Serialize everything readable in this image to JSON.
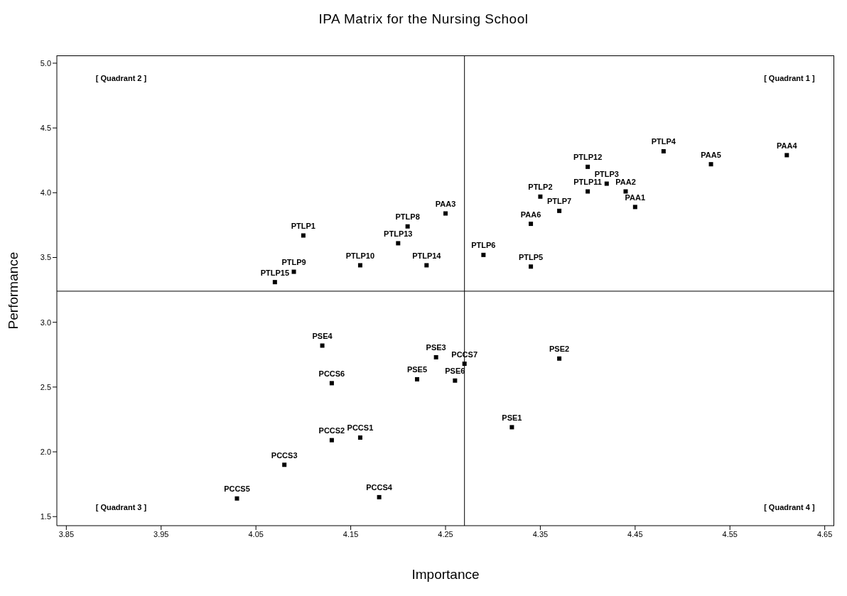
{
  "chart_data": {
    "type": "scatter",
    "title": "IPA Matrix for the Nursing School",
    "xlabel": "Importance",
    "ylabel": "Performance",
    "xlim": [
      3.84,
      4.66
    ],
    "ylim": [
      1.43,
      5.06
    ],
    "xticks": [
      3.85,
      3.95,
      4.05,
      4.15,
      4.25,
      4.35,
      4.45,
      4.55,
      4.65
    ],
    "yticks": [
      {
        "value": 1.5,
        "label": "1.5"
      },
      {
        "value": 2,
        "label": "2.0"
      },
      {
        "value": 2.5,
        "label": "2.5"
      },
      {
        "value": 3,
        "label": "3.0"
      },
      {
        "value": 3.5,
        "label": "3.5"
      },
      {
        "value": 4,
        "label": "4.0"
      },
      {
        "value": 4.5,
        "label": "4.5"
      },
      {
        "value": 5,
        "label": "5.0"
      }
    ],
    "grid": false,
    "legend": false,
    "marker": "square",
    "ref_lines": [
      {
        "axis": "x",
        "value": 4.27,
        "color": "#000000"
      },
      {
        "axis": "y",
        "value": 3.24,
        "color": "#000000"
      }
    ],
    "annotations": [
      "[ Quadrant 2 ]",
      "[ Quadrant 1 ]",
      "[ Quadrant 3 ]",
      "[ Quadrant 4 ]"
    ],
    "series": [
      {
        "color": "#000000",
        "x": [
          4.1,
          4.09,
          4.07,
          4.16,
          4.2,
          4.21,
          4.25,
          4.23,
          4.29,
          4.34,
          4.34,
          4.35,
          4.37,
          4.4,
          4.4,
          4.42,
          4.44,
          4.45,
          4.48,
          4.53,
          4.61,
          4.12,
          4.24,
          4.27,
          4.22,
          4.26,
          4.13,
          4.13,
          4.16,
          4.08,
          4.03,
          4.18,
          4.37,
          4.32
        ],
        "values": [
          3.67,
          3.39,
          3.31,
          3.44,
          3.61,
          3.74,
          3.84,
          3.44,
          3.52,
          3.43,
          3.76,
          3.97,
          3.86,
          4.01,
          4.2,
          4.07,
          4.01,
          3.89,
          4.32,
          4.22,
          4.29,
          2.82,
          2.73,
          2.68,
          2.56,
          2.55,
          2.53,
          2.09,
          2.11,
          1.9,
          1.64,
          1.65,
          2.72,
          2.19
        ],
        "value_labels": [
          "PTLP1",
          "PTLP9",
          "PTLP15",
          "PTLP10",
          "PTLP13",
          "PTLP8",
          "PAA3",
          "PTLP14",
          "PTLP6",
          "PTLP5",
          "PAA6",
          "PTLP2",
          "PTLP7",
          "PTLP11",
          "PTLP12",
          "PTLP3",
          "PAA2",
          "PAA1",
          "PTLP4",
          "PAA5",
          "PAA4",
          "PSE4",
          "PSE3",
          "PCCS7",
          "PSE5",
          "PSE6",
          "PCCS6",
          "PCCS2",
          "PCCS1",
          "PCCS3",
          "PCCS5",
          "PCCS4",
          "PSE2",
          "PSE1"
        ]
      }
    ]
  }
}
